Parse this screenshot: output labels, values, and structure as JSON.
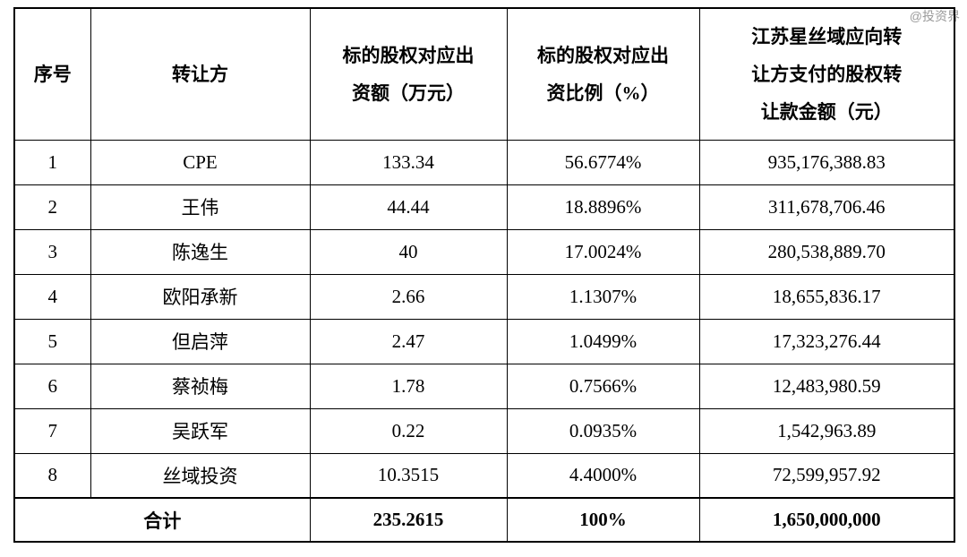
{
  "watermark": "@投资界",
  "table": {
    "headers": [
      "序号",
      "转让方",
      "标的股权对应出\n资额（万元）",
      "标的股权对应出\n资比例（%）",
      "江苏星丝域应向转\n让方支付的股权转\n让款金额（元）"
    ],
    "rows": [
      {
        "no": "1",
        "transferor": "CPE",
        "amount": "133.34",
        "ratio": "56.6774%",
        "payment": "935,176,388.83"
      },
      {
        "no": "2",
        "transferor": "王伟",
        "amount": "44.44",
        "ratio": "18.8896%",
        "payment": "311,678,706.46"
      },
      {
        "no": "3",
        "transferor": "陈逸生",
        "amount": "40",
        "ratio": "17.0024%",
        "payment": "280,538,889.70"
      },
      {
        "no": "4",
        "transferor": "欧阳承新",
        "amount": "2.66",
        "ratio": "1.1307%",
        "payment": "18,655,836.17"
      },
      {
        "no": "5",
        "transferor": "但启萍",
        "amount": "2.47",
        "ratio": "1.0499%",
        "payment": "17,323,276.44"
      },
      {
        "no": "6",
        "transferor": "蔡祯梅",
        "amount": "1.78",
        "ratio": "0.7566%",
        "payment": "12,483,980.59"
      },
      {
        "no": "7",
        "transferor": "吴跃军",
        "amount": "0.22",
        "ratio": "0.0935%",
        "payment": "1,542,963.89"
      },
      {
        "no": "8",
        "transferor": "丝域投资",
        "amount": "10.3515",
        "ratio": "4.4000%",
        "payment": "72,599,957.92"
      }
    ],
    "total": {
      "label": "合计",
      "amount": "235.2615",
      "ratio": "100%",
      "payment": "1,650,000,000"
    }
  }
}
